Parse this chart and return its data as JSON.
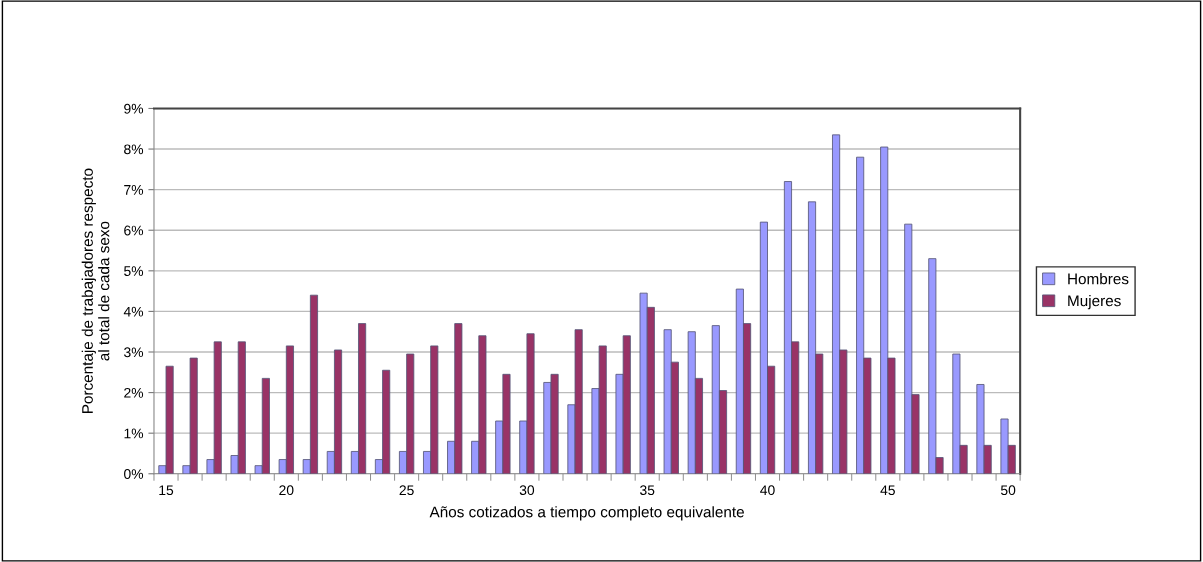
{
  "chart_data": {
    "type": "bar",
    "xlabel": "Años cotizados a tiempo completo equivalente",
    "ylabel": "Porcentaje de trabajadores respecto\nal total de cada sexo",
    "categories": [
      "15",
      null,
      null,
      null,
      null,
      "20",
      null,
      null,
      null,
      null,
      "25",
      null,
      null,
      null,
      null,
      "30",
      null,
      null,
      null,
      null,
      "35",
      null,
      null,
      null,
      null,
      "40",
      null,
      null,
      null,
      null,
      "45",
      null,
      null,
      null,
      null,
      "50"
    ],
    "series": [
      {
        "name": "Hombres",
        "color": "#9999ff",
        "values": [
          0.2,
          0.2,
          0.35,
          0.45,
          0.2,
          0.35,
          0.35,
          0.55,
          0.55,
          0.35,
          0.55,
          0.55,
          0.8,
          0.8,
          1.3,
          1.3,
          2.25,
          1.7,
          2.1,
          2.45,
          4.45,
          3.55,
          3.5,
          3.65,
          4.55,
          6.2,
          7.2,
          6.7,
          8.35,
          7.8,
          8.05,
          6.15,
          5.3,
          2.95,
          2.2,
          1.35
        ]
      },
      {
        "name": "Mujeres",
        "color": "#993366",
        "values": [
          2.65,
          2.85,
          3.25,
          3.25,
          2.35,
          3.15,
          4.4,
          3.05,
          3.7,
          2.55,
          2.95,
          3.15,
          3.7,
          3.4,
          2.45,
          3.45,
          2.45,
          3.55,
          3.15,
          3.4,
          4.1,
          2.75,
          2.35,
          2.05,
          3.7,
          2.65,
          3.25,
          2.95,
          3.05,
          2.85,
          2.85,
          1.95,
          0.4,
          0.7,
          0.7,
          0.7
        ]
      }
    ],
    "ylim": [
      0,
      9
    ],
    "yticks": [
      {
        "value": 0,
        "label": "0%"
      },
      {
        "value": 1,
        "label": "1%"
      },
      {
        "value": 2,
        "label": "2%"
      },
      {
        "value": 3,
        "label": "3%"
      },
      {
        "value": 4,
        "label": "4%"
      },
      {
        "value": 5,
        "label": "5%"
      },
      {
        "value": 6,
        "label": "6%"
      },
      {
        "value": 7,
        "label": "7%"
      },
      {
        "value": 8,
        "label": "8%"
      },
      {
        "value": 9,
        "label": "9%"
      }
    ],
    "grid": "y",
    "legend": "right"
  }
}
